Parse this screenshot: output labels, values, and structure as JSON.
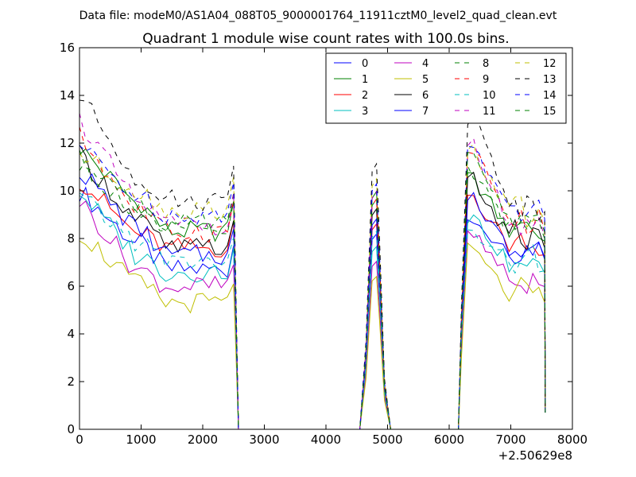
{
  "chart_data": {
    "type": "line",
    "suptitle": "Data file: modeM0/AS1A04_088T05_9000001764_11911cztM0_level2_quad_clean.evt",
    "title": "Quadrant 1 module wise count rates with 100.0s bins.",
    "xlabel": "",
    "ylabel": "",
    "x_offset_label": "+2.50629e8",
    "xlim": [
      0,
      8000
    ],
    "ylim": [
      0,
      16
    ],
    "xticks": [
      0,
      1000,
      2000,
      3000,
      4000,
      5000,
      6000,
      7000,
      8000
    ],
    "yticks": [
      0,
      2,
      4,
      6,
      8,
      10,
      12,
      14,
      16
    ],
    "grid": false,
    "legend_position": "upper-right",
    "legend_columns": 4,
    "segments": [
      {
        "start": 0,
        "end": 2500,
        "n": 26
      },
      {
        "start": 4600,
        "end": 5000,
        "n": 5
      },
      {
        "start": 6200,
        "end": 7550,
        "n": 14
      }
    ],
    "series": [
      {
        "name": "0",
        "color": "#0000ff",
        "style": "solid",
        "base": [
          10.0,
          7.8,
          6.7,
          8.6,
          7.6
        ]
      },
      {
        "name": "1",
        "color": "#008000",
        "style": "solid",
        "base": [
          11.8,
          9.5,
          8.3,
          10.5,
          8.3
        ]
      },
      {
        "name": "2",
        "color": "#ff0000",
        "style": "solid",
        "base": [
          10.5,
          8.2,
          7.6,
          9.8,
          7.7
        ]
      },
      {
        "name": "3",
        "color": "#00bfbf",
        "style": "solid",
        "base": [
          10.0,
          7.3,
          6.6,
          8.9,
          6.9
        ]
      },
      {
        "name": "4",
        "color": "#bf00bf",
        "style": "solid",
        "base": [
          9.6,
          6.7,
          6.0,
          8.1,
          6.3
        ]
      },
      {
        "name": "5",
        "color": "#bfbf00",
        "style": "solid",
        "base": [
          8.3,
          6.1,
          5.3,
          7.5,
          5.6
        ]
      },
      {
        "name": "6",
        "color": "#000000",
        "style": "solid",
        "base": [
          11.5,
          8.8,
          7.6,
          10.5,
          8.0
        ]
      },
      {
        "name": "7",
        "color": "#0000ff",
        "style": "solid",
        "base": [
          10.9,
          8.4,
          7.3,
          9.8,
          7.5
        ]
      },
      {
        "name": "8",
        "color": "#008000",
        "style": "dashed",
        "base": [
          11.0,
          9.5,
          8.6,
          10.7,
          8.4
        ]
      },
      {
        "name": "9",
        "color": "#ff0000",
        "style": "dashed",
        "base": [
          12.3,
          9.2,
          8.3,
          11.9,
          8.7
        ]
      },
      {
        "name": "10",
        "color": "#00bfbf",
        "style": "dashed",
        "base": [
          9.7,
          7.9,
          7.0,
          8.2,
          7.0
        ]
      },
      {
        "name": "11",
        "color": "#bf00bf",
        "style": "dashed",
        "base": [
          13.0,
          9.5,
          8.6,
          12.1,
          8.5
        ]
      },
      {
        "name": "12",
        "color": "#bfbf00",
        "style": "dashed",
        "base": [
          11.6,
          10.0,
          9.2,
          11.7,
          9.2
        ]
      },
      {
        "name": "13",
        "color": "#000000",
        "style": "dashed",
        "base": [
          14.0,
          10.6,
          9.6,
          13.1,
          9.6
        ]
      },
      {
        "name": "14",
        "color": "#0000ff",
        "style": "dashed",
        "base": [
          11.9,
          9.8,
          9.0,
          11.8,
          9.3
        ]
      },
      {
        "name": "15",
        "color": "#008000",
        "style": "dashed",
        "base": [
          11.6,
          9.2,
          8.3,
          11.5,
          8.7
        ]
      }
    ]
  }
}
